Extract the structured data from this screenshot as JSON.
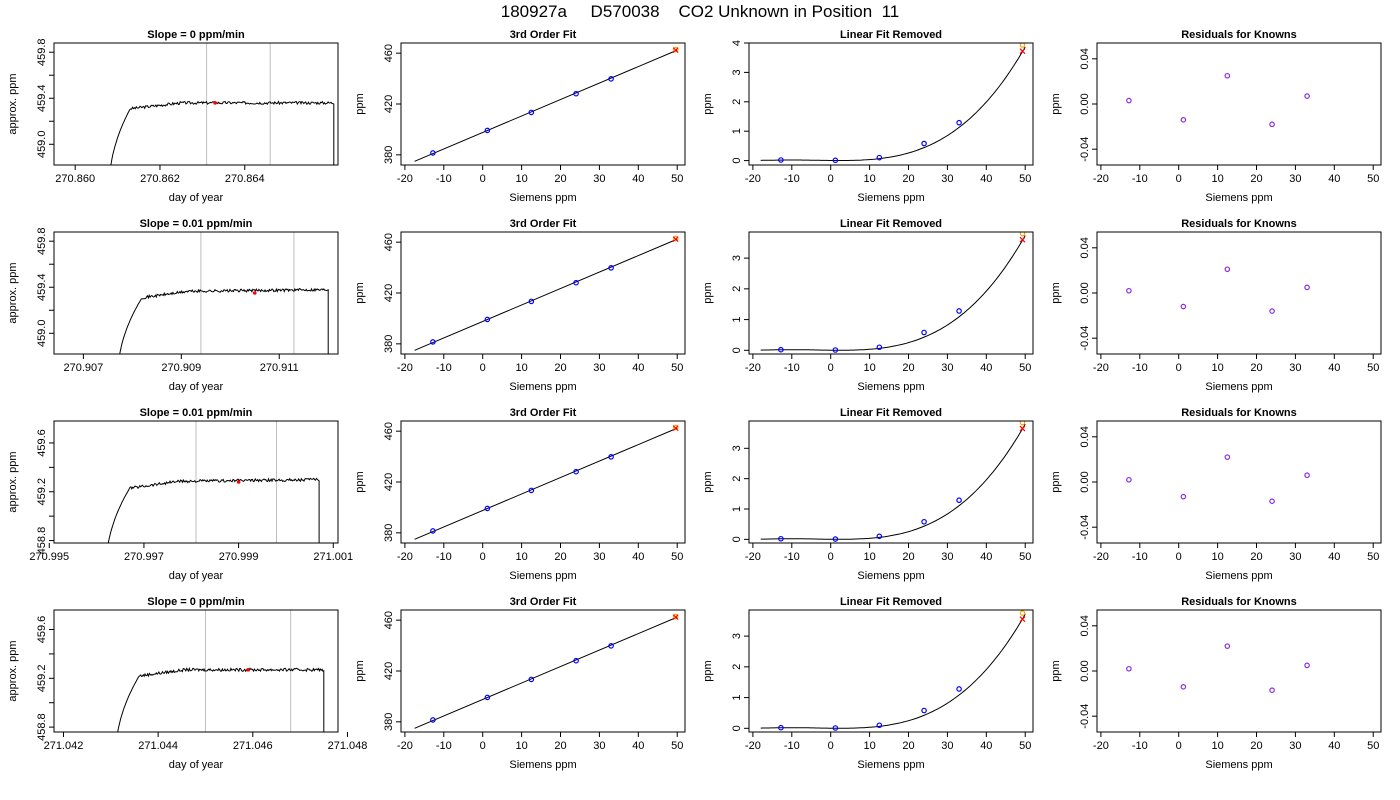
{
  "title": "180927a     D570038    CO2 Unknown in Position  11",
  "colors": {
    "axis": "#000000",
    "grid_line": "#bebebe",
    "known_point": "#0000ff",
    "unknown_point": "#ff0000",
    "alt_point": "#ffa500",
    "residual_point": "#8a2be2"
  },
  "chart_data": [
    {
      "row": 1,
      "col": 1,
      "type": "line",
      "title": "Slope =  0  ppm/min",
      "xlabel": "day of year",
      "ylabel": "approx. ppm",
      "xticks": [
        "270.860",
        "270.862",
        "270.864"
      ],
      "xtick_values": [
        270.86,
        270.862,
        270.864
      ],
      "yticks": [
        "459.0",
        "459.4",
        "459.8"
      ],
      "ytick_values": [
        459.0,
        459.4,
        459.8
      ],
      "yticks_minor": [
        459.2,
        459.6
      ],
      "xlim": [
        270.8595,
        270.8662
      ],
      "ylim": [
        458.82,
        459.88
      ],
      "trace": {
        "x_start": 270.8608,
        "x_rise_end": 270.8613,
        "x_end": 270.8661,
        "plateau": 459.36,
        "noise": 0.012,
        "tilt": 0.0
      },
      "vlines": [
        270.8631,
        270.8646
      ],
      "marker": {
        "x": 270.8633,
        "y": 459.36
      }
    },
    {
      "row": 1,
      "col": 2,
      "type": "scatter",
      "title": "3rd Order Fit",
      "xlabel": "Siemens ppm",
      "ylabel": "ppm",
      "xticks": [
        "-20",
        "-10",
        "0",
        "10",
        "20",
        "30",
        "40",
        "50"
      ],
      "xtick_values": [
        -20,
        -10,
        0,
        10,
        20,
        30,
        40,
        50
      ],
      "yticks": [
        "380",
        "420",
        "460"
      ],
      "ytick_values": [
        380,
        420,
        460
      ],
      "xlim": [
        -21,
        52
      ],
      "ylim": [
        372,
        468
      ],
      "knowns": [
        [
          -12.8,
          381.5
        ],
        [
          1.2,
          399.2
        ],
        [
          12.5,
          413.4
        ],
        [
          24.0,
          428.1
        ],
        [
          33.0,
          439.8
        ]
      ],
      "unknown": [
        49.6,
        462.4
      ],
      "alt": [
        49.6,
        462.9
      ],
      "fit": {
        "a": 397.6,
        "b": 1.296
      }
    },
    {
      "row": 1,
      "col": 3,
      "type": "scatter",
      "title": "Linear Fit Removed",
      "xlabel": "Siemens ppm",
      "ylabel": "ppm",
      "xticks": [
        "-20",
        "-10",
        "0",
        "10",
        "20",
        "30",
        "40",
        "50"
      ],
      "xtick_values": [
        -20,
        -10,
        0,
        10,
        20,
        30,
        40,
        50
      ],
      "yticks": [
        "0",
        "1",
        "2",
        "3",
        "4"
      ],
      "ytick_values": [
        0,
        1,
        2,
        3,
        4
      ],
      "xlim": [
        -21,
        52
      ],
      "ylim": [
        -0.15,
        4.0
      ],
      "knowns": [
        [
          -12.8,
          0.02
        ],
        [
          1.2,
          0.01
        ],
        [
          12.5,
          0.1
        ],
        [
          24.0,
          0.58
        ],
        [
          33.0,
          1.29
        ]
      ],
      "unknown": [
        49.3,
        3.72
      ],
      "alt": [
        49.3,
        3.93
      ],
      "curve": {
        "c": 3e-05,
        "k": 0.0
      }
    },
    {
      "row": 1,
      "col": 4,
      "type": "scatter",
      "title": "Residuals for Knowns",
      "xlabel": "Siemens ppm",
      "ylabel": "ppm",
      "xticks": [
        "-20",
        "-10",
        "0",
        "10",
        "20",
        "30",
        "40",
        "50"
      ],
      "xtick_values": [
        -20,
        -10,
        0,
        10,
        20,
        30,
        40,
        50
      ],
      "yticks": [
        "-0.04",
        "0.00",
        "0.04"
      ],
      "ytick_values": [
        -0.04,
        0.0,
        0.04
      ],
      "xlim": [
        -21,
        52
      ],
      "ylim": [
        -0.054,
        0.054
      ],
      "knowns": [
        [
          -12.8,
          0.003
        ],
        [
          1.2,
          -0.014
        ],
        [
          12.5,
          0.025
        ],
        [
          24.0,
          -0.018
        ],
        [
          33.0,
          0.007
        ]
      ]
    },
    {
      "row": 2,
      "col": 1,
      "type": "line",
      "title": "Slope =  0.01  ppm/min",
      "xlabel": "day of year",
      "ylabel": "approx. ppm",
      "xticks": [
        "270.907",
        "270.909",
        "270.911"
      ],
      "xtick_values": [
        270.907,
        270.909,
        270.911
      ],
      "yticks": [
        "459.0",
        "459.4",
        "459.8"
      ],
      "ytick_values": [
        459.0,
        459.4,
        459.8
      ],
      "yticks_minor": [
        459.2,
        459.6
      ],
      "xlim": [
        270.9064,
        270.9122
      ],
      "ylim": [
        458.82,
        459.88
      ],
      "trace": {
        "x_start": 270.9077,
        "x_rise_end": 270.9082,
        "x_end": 270.912,
        "plateau": 459.36,
        "noise": 0.012,
        "tilt": 0.02
      },
      "vlines": [
        270.9094,
        270.9113
      ],
      "marker": {
        "x": 270.9105,
        "y": 459.35
      }
    },
    {
      "row": 2,
      "col": 2,
      "type": "scatter",
      "title": "3rd Order Fit",
      "xlabel": "Siemens ppm",
      "ylabel": "ppm",
      "xticks": [
        "-20",
        "-10",
        "0",
        "10",
        "20",
        "30",
        "40",
        "50"
      ],
      "xtick_values": [
        -20,
        -10,
        0,
        10,
        20,
        30,
        40,
        50
      ],
      "yticks": [
        "380",
        "420",
        "460"
      ],
      "ytick_values": [
        380,
        420,
        460
      ],
      "xlim": [
        -21,
        52
      ],
      "ylim": [
        372,
        468
      ],
      "knowns": [
        [
          -12.8,
          381.5
        ],
        [
          1.2,
          399.2
        ],
        [
          12.5,
          413.4
        ],
        [
          24.0,
          428.1
        ],
        [
          33.0,
          439.8
        ]
      ],
      "unknown": [
        49.6,
        462.4
      ],
      "alt": [
        49.6,
        462.9
      ],
      "fit": {
        "a": 397.6,
        "b": 1.296
      }
    },
    {
      "row": 2,
      "col": 3,
      "type": "scatter",
      "title": "Linear Fit Removed",
      "xlabel": "Siemens ppm",
      "ylabel": "ppm",
      "xticks": [
        "-20",
        "-10",
        "0",
        "10",
        "20",
        "30",
        "40",
        "50"
      ],
      "xtick_values": [
        -20,
        -10,
        0,
        10,
        20,
        30,
        40,
        50
      ],
      "yticks": [
        "0",
        "1",
        "2",
        "3"
      ],
      "ytick_values": [
        0,
        1,
        2,
        3
      ],
      "xlim": [
        -21,
        52
      ],
      "ylim": [
        -0.12,
        3.85
      ],
      "knowns": [
        [
          -12.8,
          0.02
        ],
        [
          1.2,
          0.01
        ],
        [
          12.5,
          0.1
        ],
        [
          24.0,
          0.58
        ],
        [
          33.0,
          1.28
        ]
      ],
      "unknown": [
        49.3,
        3.6
      ],
      "alt": [
        49.3,
        3.8
      ],
      "curve": {
        "c": 2.9e-05,
        "k": 0.0
      }
    },
    {
      "row": 2,
      "col": 4,
      "type": "scatter",
      "title": "Residuals for Knowns",
      "xlabel": "Siemens ppm",
      "ylabel": "ppm",
      "xticks": [
        "-20",
        "-10",
        "0",
        "10",
        "20",
        "30",
        "40",
        "50"
      ],
      "xtick_values": [
        -20,
        -10,
        0,
        10,
        20,
        30,
        40,
        50
      ],
      "yticks": [
        "-0.04",
        "0.00",
        "0.04"
      ],
      "ytick_values": [
        -0.04,
        0.0,
        0.04
      ],
      "xlim": [
        -21,
        52
      ],
      "ylim": [
        -0.054,
        0.054
      ],
      "knowns": [
        [
          -12.8,
          0.002
        ],
        [
          1.2,
          -0.012
        ],
        [
          12.5,
          0.021
        ],
        [
          24.0,
          -0.016
        ],
        [
          33.0,
          0.005
        ]
      ]
    },
    {
      "row": 3,
      "col": 1,
      "type": "line",
      "title": "Slope =  0.01  ppm/min",
      "xlabel": "day of year",
      "ylabel": "approx. ppm",
      "xticks": [
        "270.995",
        "270.997",
        "270.999",
        "271.001"
      ],
      "xtick_values": [
        270.995,
        270.997,
        270.999,
        271.001
      ],
      "yticks": [
        "458.8",
        "459.2",
        "459.6"
      ],
      "ytick_values": [
        458.8,
        459.2,
        459.6
      ],
      "yticks_minor": [
        459.0,
        459.4
      ],
      "xlim": [
        270.9951,
        271.0011
      ],
      "ylim": [
        458.78,
        459.78
      ],
      "trace": {
        "x_start": 270.9962,
        "x_rise_end": 270.9967,
        "x_end": 271.0007,
        "plateau": 459.28,
        "noise": 0.012,
        "tilt": 0.02
      },
      "vlines": [
        270.9981,
        270.9998
      ],
      "marker": {
        "x": 270.999,
        "y": 459.28
      }
    },
    {
      "row": 3,
      "col": 2,
      "type": "scatter",
      "title": "3rd Order Fit",
      "xlabel": "Siemens ppm",
      "ylabel": "ppm",
      "xticks": [
        "-20",
        "-10",
        "0",
        "10",
        "20",
        "30",
        "40",
        "50"
      ],
      "xtick_values": [
        -20,
        -10,
        0,
        10,
        20,
        30,
        40,
        50
      ],
      "yticks": [
        "380",
        "420",
        "460"
      ],
      "ytick_values": [
        380,
        420,
        460
      ],
      "xlim": [
        -21,
        52
      ],
      "ylim": [
        372,
        468
      ],
      "knowns": [
        [
          -12.8,
          381.5
        ],
        [
          1.2,
          399.2
        ],
        [
          12.5,
          413.4
        ],
        [
          24.0,
          428.1
        ],
        [
          33.0,
          439.8
        ]
      ],
      "unknown": [
        49.6,
        462.4
      ],
      "alt": [
        49.6,
        462.9
      ],
      "fit": {
        "a": 397.6,
        "b": 1.296
      }
    },
    {
      "row": 3,
      "col": 3,
      "type": "scatter",
      "title": "Linear Fit Removed",
      "xlabel": "Siemens ppm",
      "ylabel": "ppm",
      "xticks": [
        "-20",
        "-10",
        "0",
        "10",
        "20",
        "30",
        "40",
        "50"
      ],
      "xtick_values": [
        -20,
        -10,
        0,
        10,
        20,
        30,
        40,
        50
      ],
      "yticks": [
        "0",
        "1",
        "2",
        "3"
      ],
      "ytick_values": [
        0,
        1,
        2,
        3
      ],
      "xlim": [
        -21,
        52
      ],
      "ylim": [
        -0.12,
        3.9
      ],
      "knowns": [
        [
          -12.8,
          0.02
        ],
        [
          1.2,
          0.01
        ],
        [
          12.5,
          0.1
        ],
        [
          24.0,
          0.58
        ],
        [
          33.0,
          1.29
        ]
      ],
      "unknown": [
        49.3,
        3.65
      ],
      "alt": [
        49.3,
        3.85
      ],
      "curve": {
        "c": 2.95e-05,
        "k": 0.0
      }
    },
    {
      "row": 3,
      "col": 4,
      "type": "scatter",
      "title": "Residuals for Knowns",
      "xlabel": "Siemens ppm",
      "ylabel": "ppm",
      "xticks": [
        "-20",
        "-10",
        "0",
        "10",
        "20",
        "30",
        "40",
        "50"
      ],
      "xtick_values": [
        -20,
        -10,
        0,
        10,
        20,
        30,
        40,
        50
      ],
      "yticks": [
        "-0.04",
        "0.00",
        "0.04"
      ],
      "ytick_values": [
        -0.04,
        0.0,
        0.04
      ],
      "xlim": [
        -21,
        52
      ],
      "ylim": [
        -0.054,
        0.054
      ],
      "knowns": [
        [
          -12.8,
          0.002
        ],
        [
          1.2,
          -0.013
        ],
        [
          12.5,
          0.022
        ],
        [
          24.0,
          -0.017
        ],
        [
          33.0,
          0.006
        ]
      ]
    },
    {
      "row": 4,
      "col": 1,
      "type": "line",
      "title": "Slope =  0  ppm/min",
      "xlabel": "day of year",
      "ylabel": "approx. ppm",
      "xticks": [
        "271.042",
        "271.044",
        "271.046",
        "271.048"
      ],
      "xtick_values": [
        271.042,
        271.044,
        271.046,
        271.048
      ],
      "yticks": [
        "458.8",
        "459.2",
        "459.6"
      ],
      "ytick_values": [
        458.8,
        459.2,
        459.6
      ],
      "yticks_minor": [
        459.0,
        459.4
      ],
      "xlim": [
        271.0418,
        271.0478
      ],
      "ylim": [
        458.76,
        459.76
      ],
      "trace": {
        "x_start": 271.0431,
        "x_rise_end": 271.0436,
        "x_end": 271.0475,
        "plateau": 459.27,
        "noise": 0.012,
        "tilt": 0.0
      },
      "vlines": [
        271.045,
        271.0468
      ],
      "marker": {
        "x": 271.0459,
        "y": 459.27
      }
    },
    {
      "row": 4,
      "col": 2,
      "type": "scatter",
      "title": "3rd Order Fit",
      "xlabel": "Siemens ppm",
      "ylabel": "ppm",
      "xticks": [
        "-20",
        "-10",
        "0",
        "10",
        "20",
        "30",
        "40",
        "50"
      ],
      "xtick_values": [
        -20,
        -10,
        0,
        10,
        20,
        30,
        40,
        50
      ],
      "yticks": [
        "380",
        "420",
        "460"
      ],
      "ytick_values": [
        380,
        420,
        460
      ],
      "xlim": [
        -21,
        52
      ],
      "ylim": [
        372,
        468
      ],
      "knowns": [
        [
          -12.8,
          381.5
        ],
        [
          1.2,
          399.2
        ],
        [
          12.5,
          413.4
        ],
        [
          24.0,
          428.1
        ],
        [
          33.0,
          439.8
        ]
      ],
      "unknown": [
        49.6,
        462.4
      ],
      "alt": [
        49.6,
        462.9
      ],
      "fit": {
        "a": 397.6,
        "b": 1.296
      }
    },
    {
      "row": 4,
      "col": 3,
      "type": "scatter",
      "title": "Linear Fit Removed",
      "xlabel": "Siemens ppm",
      "ylabel": "ppm",
      "xticks": [
        "-20",
        "-10",
        "0",
        "10",
        "20",
        "30",
        "40",
        "50"
      ],
      "xtick_values": [
        -20,
        -10,
        0,
        10,
        20,
        30,
        40,
        50
      ],
      "yticks": [
        "0",
        "1",
        "2",
        "3"
      ],
      "ytick_values": [
        0,
        1,
        2,
        3
      ],
      "xlim": [
        -21,
        52
      ],
      "ylim": [
        -0.12,
        3.85
      ],
      "knowns": [
        [
          -12.8,
          0.02
        ],
        [
          1.2,
          0.01
        ],
        [
          12.5,
          0.1
        ],
        [
          24.0,
          0.58
        ],
        [
          33.0,
          1.28
        ]
      ],
      "unknown": [
        49.3,
        3.55
      ],
      "alt": [
        49.3,
        3.75
      ],
      "curve": {
        "c": 2.88e-05,
        "k": 0.0
      }
    },
    {
      "row": 4,
      "col": 4,
      "type": "scatter",
      "title": "Residuals for Knowns",
      "xlabel": "Siemens ppm",
      "ylabel": "ppm",
      "xticks": [
        "-20",
        "-10",
        "0",
        "10",
        "20",
        "30",
        "40",
        "50"
      ],
      "xtick_values": [
        -20,
        -10,
        0,
        10,
        20,
        30,
        40,
        50
      ],
      "yticks": [
        "-0.04",
        "0.00",
        "0.04"
      ],
      "ytick_values": [
        -0.04,
        0.0,
        0.04
      ],
      "xlim": [
        -21,
        52
      ],
      "ylim": [
        -0.054,
        0.054
      ],
      "knowns": [
        [
          -12.8,
          0.002
        ],
        [
          1.2,
          -0.014
        ],
        [
          12.5,
          0.022
        ],
        [
          24.0,
          -0.017
        ],
        [
          33.0,
          0.005
        ]
      ]
    }
  ]
}
